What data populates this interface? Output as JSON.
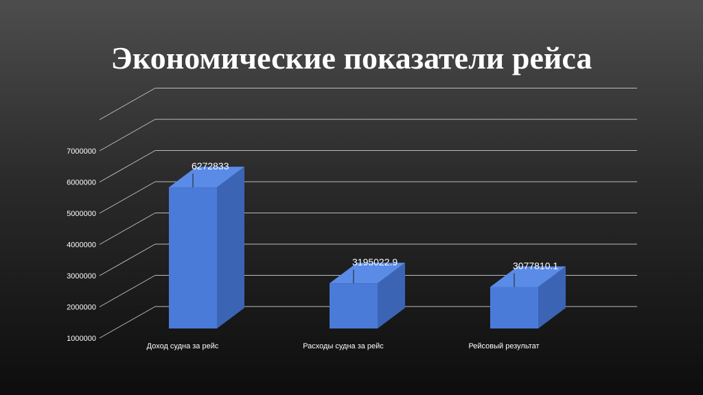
{
  "title": "Экономические показатели рейса",
  "colors": {
    "bar_front": "#4a7bd8",
    "bar_side": "#3b64b4",
    "bar_top": "#5a8be6",
    "grid": "#bfbfbf",
    "text": "#ffffff"
  },
  "chart_data": {
    "type": "bar",
    "style": "3d-column",
    "title": "",
    "xlabel": "",
    "ylabel": "",
    "categories": [
      "Доход судна за рейс",
      "Расходы судна за рейс",
      "Рейсовый результат"
    ],
    "values": [
      6272833,
      3195022.9,
      3077810.1
    ],
    "data_labels": [
      "6272833",
      "3195022.9",
      "3077810.1"
    ],
    "yticks": [
      "1000000",
      "2000000",
      "3000000",
      "4000000",
      "5000000",
      "6000000",
      "7000000"
    ],
    "ylim": [
      1000000,
      8000000
    ],
    "grid": true,
    "legend": "none"
  }
}
